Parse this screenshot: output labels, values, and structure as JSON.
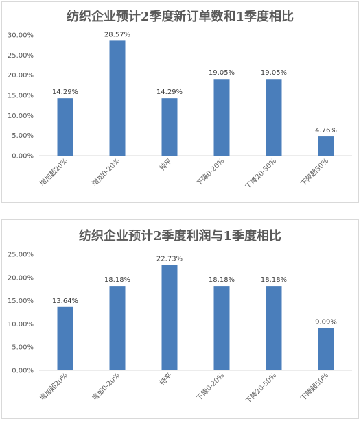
{
  "charts": [
    {
      "type": "bar",
      "title": "纺织企业预计2季度新订单数和1季度相比",
      "categories": [
        "增加超20%",
        "增加0-20%",
        "持平",
        "下降0-20%",
        "下降20-50%",
        "下降超50%"
      ],
      "values": [
        14.29,
        28.57,
        14.29,
        19.05,
        19.05,
        4.76
      ],
      "value_labels": [
        "14.29%",
        "28.57%",
        "14.29%",
        "19.05%",
        "19.05%",
        "4.76%"
      ],
      "ylim": [
        0,
        30
      ],
      "yticks": [
        0,
        5,
        10,
        15,
        20,
        25,
        30
      ],
      "ytick_labels": [
        "0.00%",
        "5.00%",
        "10.00%",
        "15.00%",
        "20.00%",
        "25.00%",
        "30.00%"
      ],
      "bar_color": "#4a7ebb",
      "grid": false,
      "legend": "none"
    },
    {
      "type": "bar",
      "title": "纺织企业预计2季度利润与1季度相比",
      "categories": [
        "增加超20%",
        "增加0-20%",
        "持平",
        "下降0-20%",
        "下降20-50%",
        "下降超50%"
      ],
      "values": [
        13.64,
        18.18,
        22.73,
        18.18,
        18.18,
        9.09
      ],
      "value_labels": [
        "13.64%",
        "18.18%",
        "22.73%",
        "18.18%",
        "18.18%",
        "9.09%"
      ],
      "ylim": [
        0,
        25
      ],
      "yticks": [
        0,
        5,
        10,
        15,
        20,
        25
      ],
      "ytick_labels": [
        "0.00%",
        "5.00%",
        "10.00%",
        "15.00%",
        "20.00%",
        "25.00%"
      ],
      "bar_color": "#4a7ebb",
      "grid": false,
      "legend": "none"
    }
  ]
}
